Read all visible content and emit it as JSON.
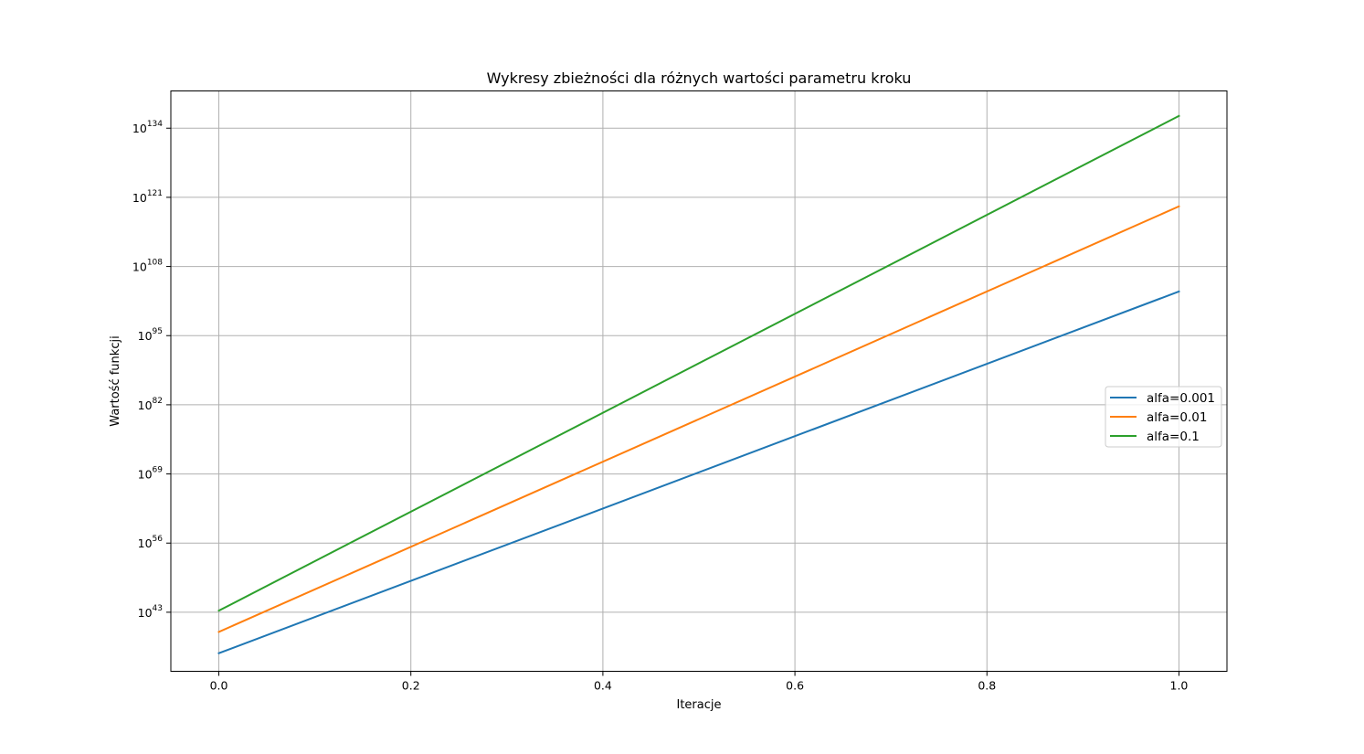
{
  "chart_data": {
    "type": "line",
    "title": "Wykresy zbieżności dla różnych wartości parametru kroku",
    "xlabel": "Iteracje",
    "ylabel": "Wartość funkcji",
    "yscale": "log",
    "grid": true,
    "legend_position": "center-right",
    "xlim": [
      -0.05,
      1.05
    ],
    "ylim_exponent": [
      31.9,
      141.0
    ],
    "x_ticks": [
      {
        "value": 0.0,
        "label": "0.0"
      },
      {
        "value": 0.2,
        "label": "0.2"
      },
      {
        "value": 0.4,
        "label": "0.4"
      },
      {
        "value": 0.6,
        "label": "0.6"
      },
      {
        "value": 0.8,
        "label": "0.8"
      },
      {
        "value": 1.0,
        "label": "1.0"
      }
    ],
    "y_ticks": [
      {
        "exponent": 43,
        "base": "10",
        "sup": "43"
      },
      {
        "exponent": 56,
        "base": "10",
        "sup": "56"
      },
      {
        "exponent": 69,
        "base": "10",
        "sup": "69"
      },
      {
        "exponent": 82,
        "base": "10",
        "sup": "82"
      },
      {
        "exponent": 95,
        "base": "10",
        "sup": "95"
      },
      {
        "exponent": 108,
        "base": "10",
        "sup": "108"
      },
      {
        "exponent": 121,
        "base": "10",
        "sup": "121"
      },
      {
        "exponent": 134,
        "base": "10",
        "sup": "134"
      }
    ],
    "x": [
      0.0,
      1.0
    ],
    "series": [
      {
        "name": "alfa=0.001",
        "color": "#1f77b4",
        "log10_values": [
          35.3,
          103.3
        ]
      },
      {
        "name": "alfa=0.01",
        "color": "#ff7f0e",
        "log10_values": [
          39.3,
          119.3
        ]
      },
      {
        "name": "alfa=0.1",
        "color": "#2ca02c",
        "log10_values": [
          43.3,
          136.3
        ]
      }
    ]
  }
}
